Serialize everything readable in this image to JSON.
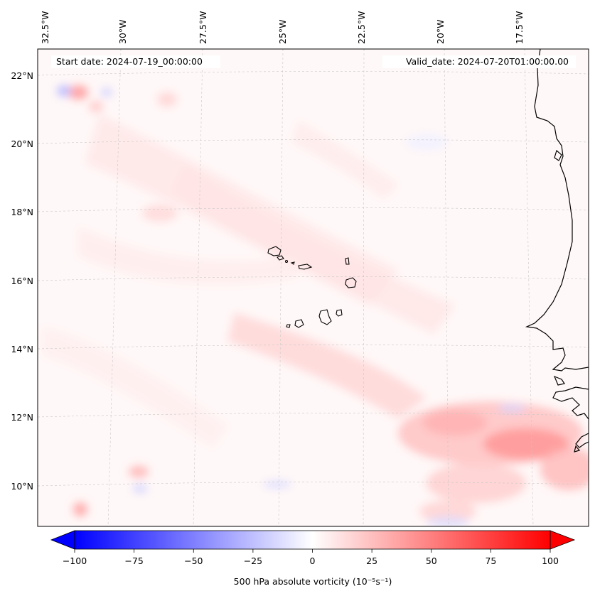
{
  "annotations": {
    "start_date": "Start date: 2024-07-19_00:00:00",
    "valid_date": "Valid_date: 2024-07-20T01:00:00.00"
  },
  "longitude_labels": [
    "32.5°W",
    "30°W",
    "27.5°W",
    "25°W",
    "22.5°W",
    "20°W",
    "17.5°W"
  ],
  "latitude_labels": [
    "22°N",
    "20°N",
    "18°N",
    "16°N",
    "14°N",
    "12°N",
    "10°N"
  ],
  "colorbar": {
    "min": -100,
    "max": 100,
    "ticks": [
      "−100",
      "−75",
      "−50",
      "−25",
      "0",
      "25",
      "50",
      "75",
      "100"
    ],
    "label": "500 hPa absolute vorticity (10⁻⁵s⁻¹)",
    "colormap": "bwr",
    "low_color": "#0000ff",
    "mid_color": "#ffffff",
    "high_color": "#ff0000"
  },
  "colors": {
    "coastline": "#000000",
    "gridline": "#c8c8c8"
  }
}
